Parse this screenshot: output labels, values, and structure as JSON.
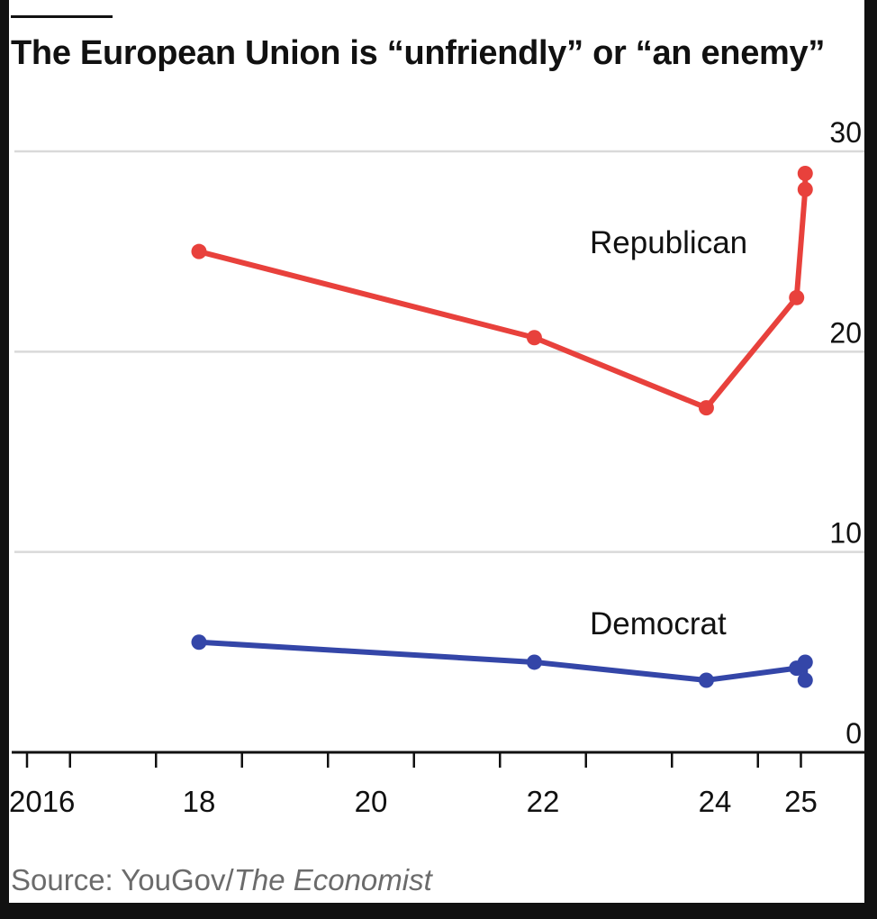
{
  "chart_data": {
    "type": "line",
    "title": "The European Union is “unfriendly” or “an enemy”",
    "source_prefix": "Source: YouGov/",
    "source_italic": "The Economist",
    "ylim": [
      0,
      30
    ],
    "yticks": [
      0,
      10,
      20,
      30
    ],
    "xlim": [
      2016,
      2025.9
    ],
    "xtick_label_values": [
      2016,
      2018,
      2020,
      2022,
      2024,
      2025
    ],
    "xtick_labels": [
      "2016",
      "18",
      "20",
      "22",
      "24",
      "25"
    ],
    "xtick_marks": [
      2016,
      2016.5,
      2017.5,
      2018.5,
      2019.5,
      2020.5,
      2021.5,
      2022.5,
      2023.5,
      2024.5,
      2025
    ],
    "series": [
      {
        "name": "Republican",
        "color": "#e8413c",
        "points": [
          {
            "x": 2018.0,
            "y": 25.0
          },
          {
            "x": 2021.9,
            "y": 20.7
          },
          {
            "x": 2023.9,
            "y": 17.2
          },
          {
            "x": 2024.95,
            "y": 22.7
          },
          {
            "x": 2025.05,
            "y": 28.1
          },
          {
            "x": 2025.05,
            "y": 28.9
          }
        ]
      },
      {
        "name": "Democrat",
        "color": "#3446a8",
        "points": [
          {
            "x": 2018.0,
            "y": 5.5
          },
          {
            "x": 2021.9,
            "y": 4.5
          },
          {
            "x": 2023.9,
            "y": 3.6
          },
          {
            "x": 2024.95,
            "y": 4.2
          },
          {
            "x": 2025.05,
            "y": 4.5
          },
          {
            "x": 2025.05,
            "y": 3.6
          }
        ]
      }
    ]
  }
}
